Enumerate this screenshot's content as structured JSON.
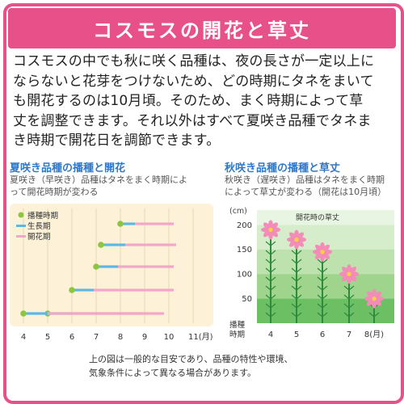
{
  "title": "コスモスの開花と草丈",
  "intro": [
    "コスモスの中でも秋に咲く品種は、夜の長さが一定以上に",
    "ならないと花芽をつけないため、どの時期にタネをまいて",
    "も開花するのは10月頃。そのため、まく時期によって草",
    "丈を調整できます。それ以外はすべて夏咲き品種でタネま",
    "き時期で開花日を調節できます。"
  ],
  "summer": {
    "title": "夏咲き品種の播種と開花",
    "desc": [
      "夏咲き（早咲き）品種はタネをまく時期によ",
      "って開花時期が変わる"
    ],
    "legend": [
      "播種時期",
      "生長期",
      "開花期"
    ],
    "x_ticks": [
      "4",
      "5",
      "6",
      "7",
      "8",
      "9",
      "10",
      "11(月)"
    ],
    "colors": {
      "sow": "#8cc63f",
      "grow": "#5bb8e6",
      "bloom": "#f4a6c8",
      "bg": "#fdf2d8"
    }
  },
  "autumn": {
    "title": "秋咲き品種の播種と草丈",
    "desc": [
      "秋咲き（遅咲き）品種はタネをまく時期",
      "によって草丈が変わる（開花は10月頃）"
    ],
    "unit": "(cm)",
    "label": "開花時の草丈",
    "y_ticks": [
      "200",
      "150",
      "100",
      "50"
    ],
    "x_axis_title": [
      "播種",
      "時期"
    ],
    "x_ticks": [
      "4",
      "5",
      "6",
      "7",
      "8(月)"
    ]
  },
  "footnote": [
    "上の図は一般的な目安であり、品種の特性や環境、",
    "気象条件によって異なる場合があります。"
  ],
  "chart_data": [
    {
      "type": "bar",
      "title": "夏咲き品種の播種と開花",
      "series_names": [
        "播種時期",
        "生長期",
        "開花期"
      ],
      "x_unit": "月",
      "xlim": [
        4,
        11
      ],
      "rows": [
        {
          "sow": 8.0,
          "grow_end": 8.6,
          "bloom_end": 10.2
        },
        {
          "sow": 7.2,
          "grow_end": 8.2,
          "bloom_end": 10.3
        },
        {
          "sow": 7.0,
          "grow_end": 7.9,
          "bloom_end": 10.2
        },
        {
          "sow": 6.0,
          "grow_end": 6.9,
          "bloom_end": 10.2
        },
        {
          "sow": 5.0,
          "grow_end": 6.0,
          "bloom_end": 9.8
        },
        {
          "sow": 4.0,
          "grow_end": 5.0,
          "bloom_end": 9.1
        }
      ]
    },
    {
      "type": "bar",
      "title": "秋咲き品種の播種と草丈",
      "categories": [
        "4",
        "5",
        "6",
        "7",
        "8"
      ],
      "values": [
        190,
        170,
        145,
        100,
        50
      ],
      "ylabel": "(cm)",
      "ylim": [
        0,
        230
      ]
    }
  ]
}
